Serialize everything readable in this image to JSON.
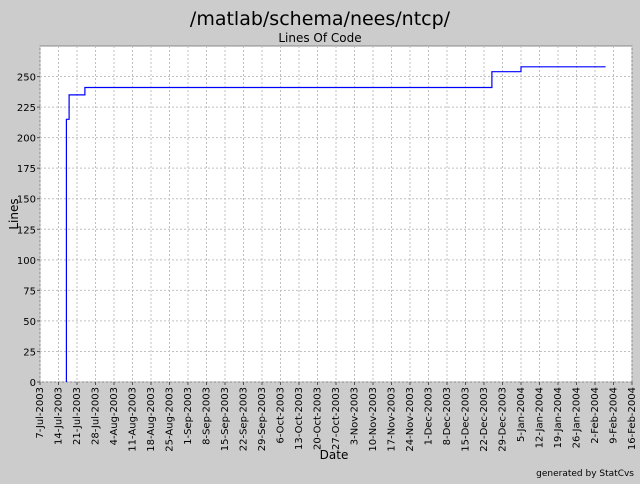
{
  "chart_data": {
    "type": "line",
    "title": "/matlab/schema/nees/ntcp/",
    "subtitle": "Lines Of Code",
    "xlabel": "Date",
    "ylabel": "Lines",
    "ylim": [
      0,
      275
    ],
    "xlim": [
      "2003-07-07",
      "2004-02-16"
    ],
    "grid": true,
    "y_ticks": [
      0,
      25,
      50,
      75,
      100,
      125,
      150,
      175,
      200,
      225,
      250
    ],
    "x_ticks": [
      {
        "date": "2003-07-07",
        "label": "7-Jul-2003"
      },
      {
        "date": "2003-07-14",
        "label": "14-Jul-2003"
      },
      {
        "date": "2003-07-21",
        "label": "21-Jul-2003"
      },
      {
        "date": "2003-07-28",
        "label": "28-Jul-2003"
      },
      {
        "date": "2003-08-04",
        "label": "4-Aug-2003"
      },
      {
        "date": "2003-08-11",
        "label": "11-Aug-2003"
      },
      {
        "date": "2003-08-18",
        "label": "18-Aug-2003"
      },
      {
        "date": "2003-08-25",
        "label": "25-Aug-2003"
      },
      {
        "date": "2003-09-01",
        "label": "1-Sep-2003"
      },
      {
        "date": "2003-09-08",
        "label": "8-Sep-2003"
      },
      {
        "date": "2003-09-15",
        "label": "15-Sep-2003"
      },
      {
        "date": "2003-09-22",
        "label": "22-Sep-2003"
      },
      {
        "date": "2003-09-29",
        "label": "29-Sep-2003"
      },
      {
        "date": "2003-10-06",
        "label": "6-Oct-2003"
      },
      {
        "date": "2003-10-13",
        "label": "13-Oct-2003"
      },
      {
        "date": "2003-10-20",
        "label": "20-Oct-2003"
      },
      {
        "date": "2003-10-27",
        "label": "27-Oct-2003"
      },
      {
        "date": "2003-11-03",
        "label": "3-Nov-2003"
      },
      {
        "date": "2003-11-10",
        "label": "10-Nov-2003"
      },
      {
        "date": "2003-11-17",
        "label": "17-Nov-2003"
      },
      {
        "date": "2003-11-24",
        "label": "24-Nov-2003"
      },
      {
        "date": "2003-12-01",
        "label": "1-Dec-2003"
      },
      {
        "date": "2003-12-08",
        "label": "8-Dec-2003"
      },
      {
        "date": "2003-12-15",
        "label": "15-Dec-2003"
      },
      {
        "date": "2003-12-22",
        "label": "22-Dec-2003"
      },
      {
        "date": "2003-12-29",
        "label": "29-Dec-2003"
      },
      {
        "date": "2004-01-05",
        "label": "5-Jan-2004"
      },
      {
        "date": "2004-01-12",
        "label": "12-Jan-2004"
      },
      {
        "date": "2004-01-19",
        "label": "19-Jan-2004"
      },
      {
        "date": "2004-01-26",
        "label": "26-Jan-2004"
      },
      {
        "date": "2004-02-02",
        "label": "2-Feb-2004"
      },
      {
        "date": "2004-02-09",
        "label": "9-Feb-2004"
      },
      {
        "date": "2004-02-16",
        "label": "16-Feb-2004"
      }
    ],
    "series": [
      {
        "line_style": "step",
        "color": "#0000ff",
        "points": [
          {
            "date": "2003-07-17",
            "value": 0
          },
          {
            "date": "2003-07-17",
            "value": 215
          },
          {
            "date": "2003-07-18",
            "value": 215
          },
          {
            "date": "2003-07-18",
            "value": 235
          },
          {
            "date": "2003-07-24",
            "value": 235
          },
          {
            "date": "2003-07-24",
            "value": 241
          },
          {
            "date": "2003-12-25",
            "value": 241
          },
          {
            "date": "2003-12-25",
            "value": 254
          },
          {
            "date": "2004-01-05",
            "value": 254
          },
          {
            "date": "2004-01-05",
            "value": 258
          },
          {
            "date": "2004-02-06",
            "value": 258
          }
        ]
      }
    ]
  },
  "footer": {
    "credit": "generated by StatCvs"
  }
}
